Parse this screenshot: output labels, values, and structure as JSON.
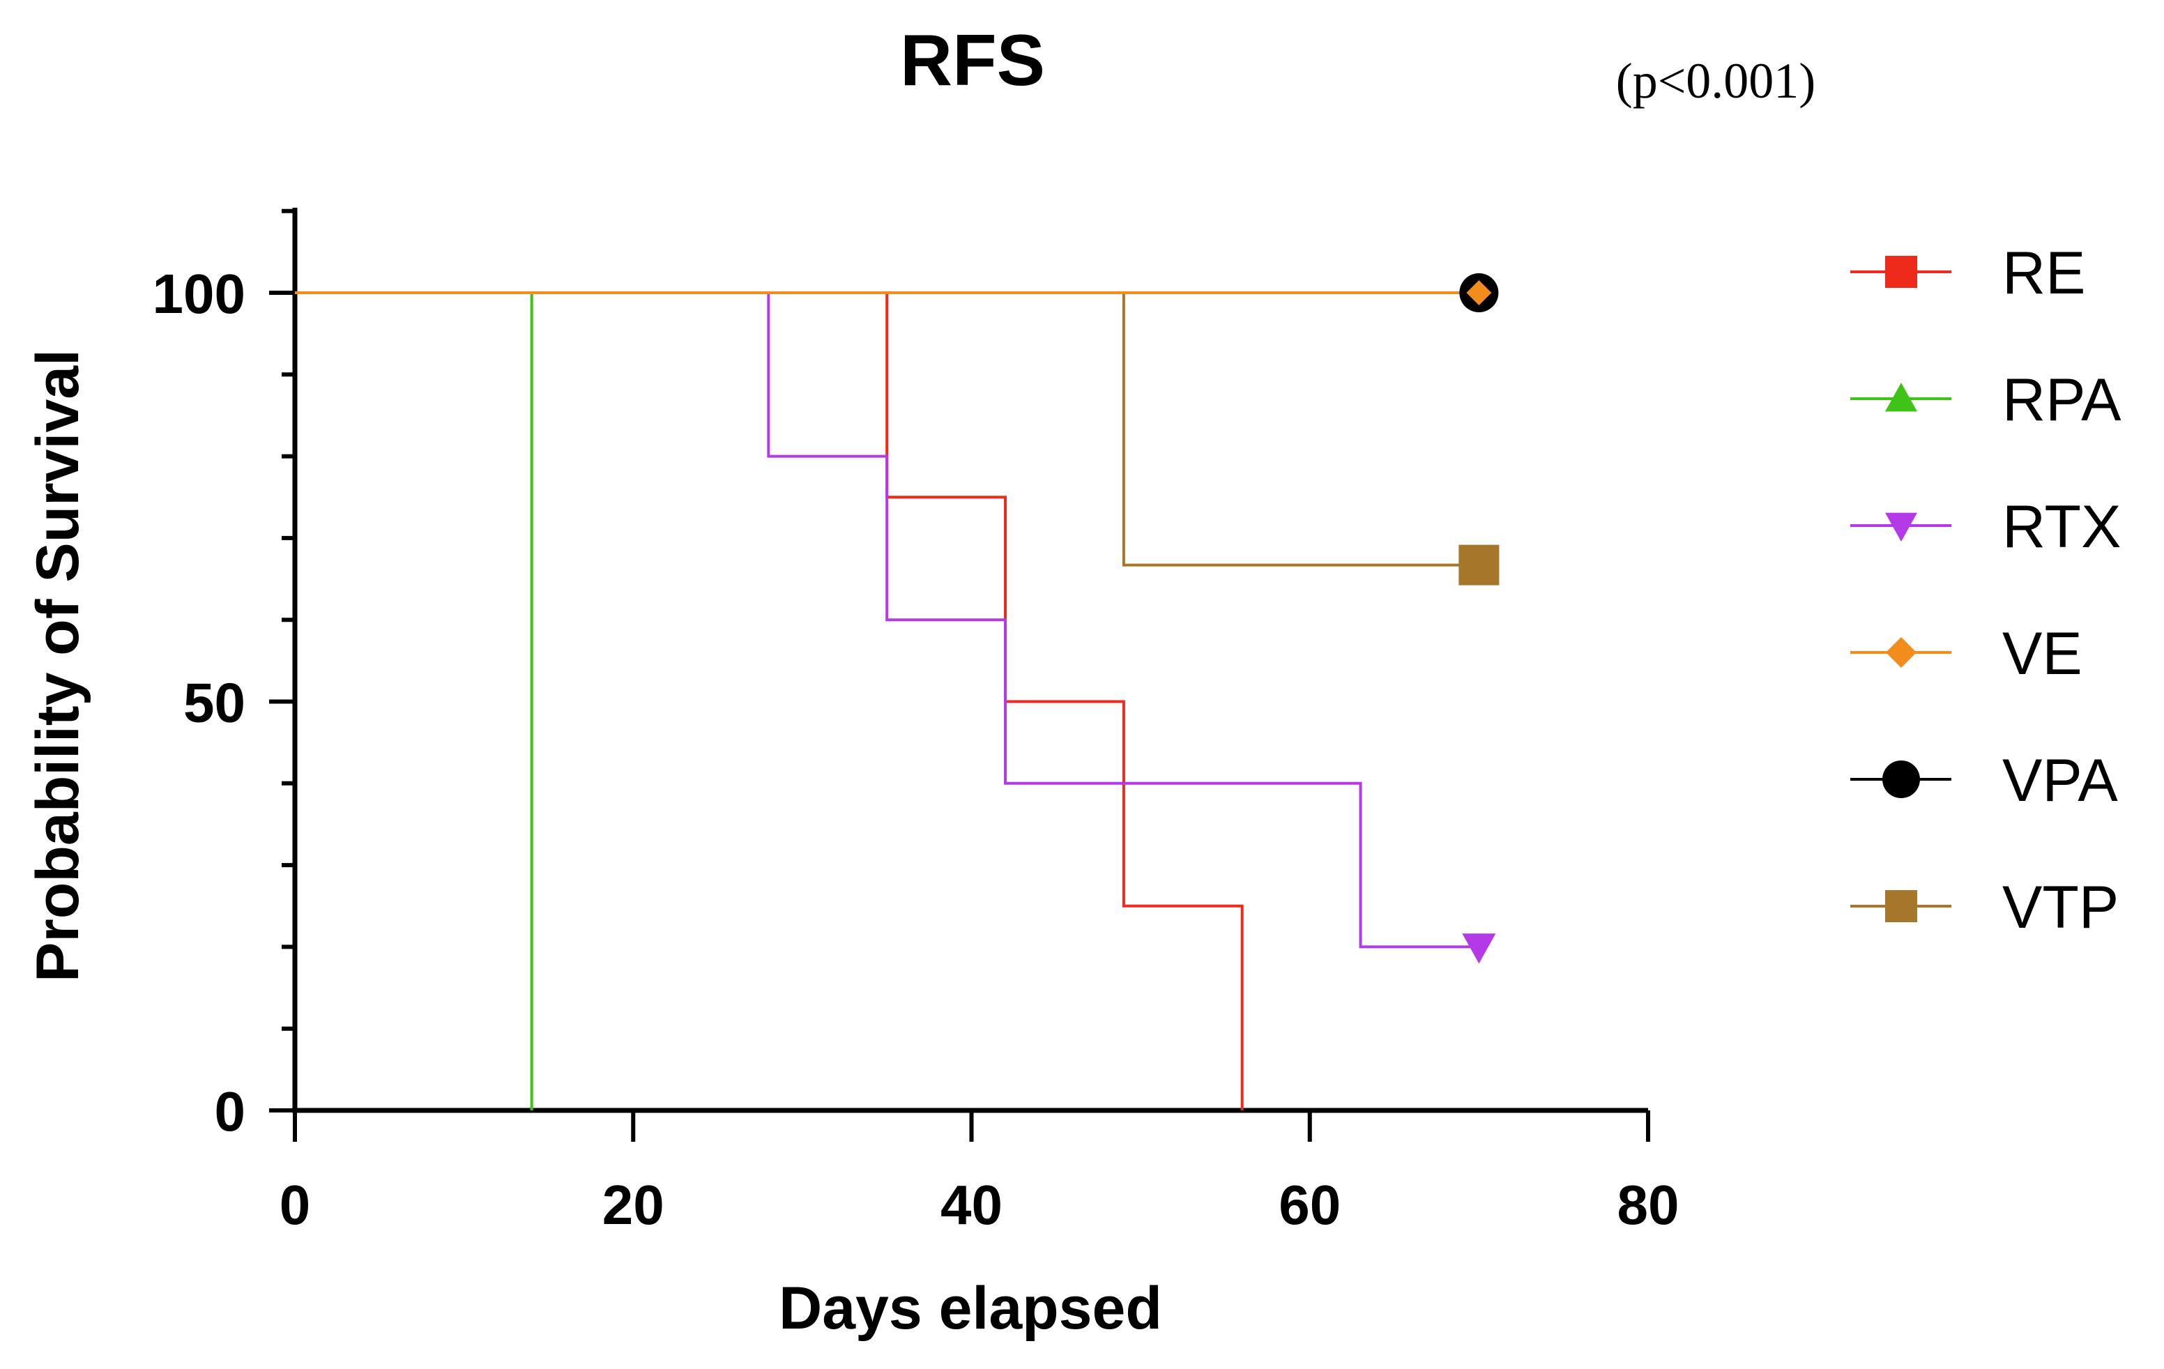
{
  "chart_data": {
    "type": "line",
    "subtype": "kaplan-meier-step",
    "title": "RFS",
    "annotation": "(p<0.001)",
    "xlabel": "Days elapsed",
    "ylabel": "Probability of Survival",
    "xlim": [
      0,
      80
    ],
    "ylim": [
      0,
      110
    ],
    "xticks": [
      0,
      20,
      40,
      60,
      80
    ],
    "yticks": [
      0,
      50,
      100
    ],
    "xtick_labels": [
      "0",
      "20",
      "40",
      "60",
      "80"
    ],
    "ytick_labels": [
      "0",
      "50",
      "100"
    ],
    "y_minor_step": 10,
    "legend_position": "right",
    "series": [
      {
        "name": "RE",
        "color": "#ee2a1b",
        "marker": "square",
        "x": [
          0,
          35,
          35,
          42,
          42,
          49,
          49,
          56,
          56
        ],
        "y": [
          100,
          100,
          75,
          75,
          50,
          50,
          25,
          25,
          0
        ],
        "end_marker": null
      },
      {
        "name": "RPA",
        "color": "#3fc317",
        "marker": "triangle-up",
        "x": [
          0,
          14,
          14
        ],
        "y": [
          100,
          100,
          0
        ],
        "end_marker": null
      },
      {
        "name": "RTX",
        "color": "#b43ae8",
        "marker": "triangle-down",
        "x": [
          0,
          28,
          28,
          35,
          35,
          42,
          42,
          63,
          63,
          70
        ],
        "y": [
          100,
          100,
          80,
          80,
          60,
          60,
          40,
          40,
          20,
          20
        ],
        "end_marker": [
          70,
          20
        ]
      },
      {
        "name": "VE",
        "color": "#f28c1c",
        "marker": "diamond",
        "x": [
          0,
          70
        ],
        "y": [
          100,
          100
        ],
        "end_marker": [
          70,
          100
        ]
      },
      {
        "name": "VPA",
        "color": "#000000",
        "marker": "circle",
        "x": [
          0,
          70
        ],
        "y": [
          100,
          100
        ],
        "end_marker": [
          70,
          100
        ]
      },
      {
        "name": "VTP",
        "color": "#a6772b",
        "marker": "square",
        "x": [
          0,
          49,
          49,
          70
        ],
        "y": [
          100,
          100,
          66.7,
          66.7
        ],
        "end_marker": [
          70,
          66.7
        ]
      }
    ],
    "draw_order": [
      "VTP",
      "RE",
      "RTX",
      "RPA",
      "VPA",
      "VE"
    ]
  }
}
